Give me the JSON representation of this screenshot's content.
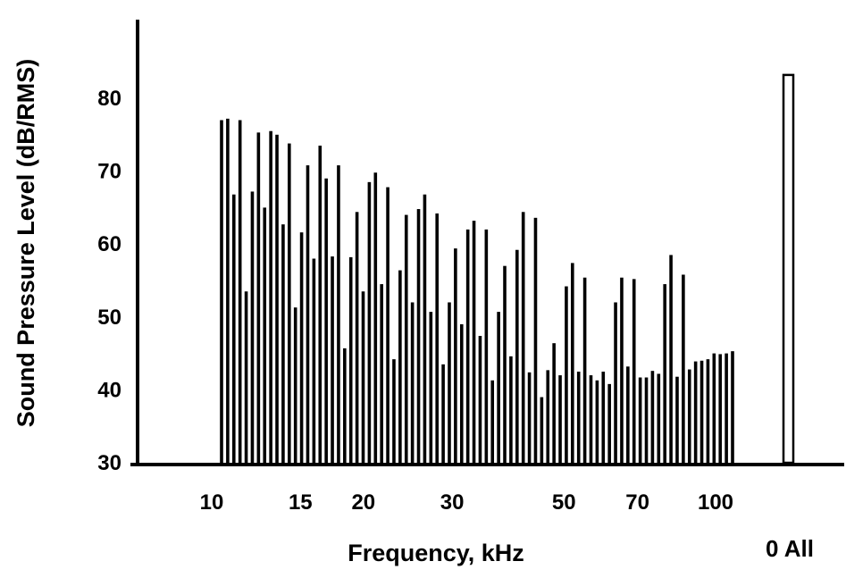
{
  "chart_data": {
    "type": "bar",
    "title": "",
    "xlabel": "Frequency, kHz",
    "ylabel": "Sound Pressure Level (dB/RMS)",
    "ylim": [
      30,
      90
    ],
    "y_ticks": [
      30,
      40,
      50,
      60,
      70,
      80
    ],
    "x_scale": "log",
    "x_ticks": [
      10,
      15,
      20,
      30,
      50,
      70,
      100
    ],
    "grid": false,
    "legend": "none",
    "bar_color": "#000000",
    "series": [
      {
        "values": [
          77,
          77.2,
          66.8,
          77,
          53.5,
          67.2,
          75.3,
          65,
          75.5,
          75,
          62.7,
          73.8,
          51.3,
          61.6,
          70.8,
          58,
          73.5,
          69,
          58.3,
          70.8,
          45.7,
          58.2,
          64.4,
          53.5,
          68.5,
          69.8,
          54.5,
          67.8,
          44.2,
          56.4,
          64,
          52,
          64.8,
          66.8,
          50.7,
          64.2,
          43.5,
          52,
          59.4,
          49,
          62,
          63.2,
          47.4,
          62,
          41.3,
          50.7,
          57,
          44.6,
          59.2,
          64.4,
          42.4,
          63.6,
          39,
          42.7,
          46.4,
          42,
          54.2,
          57.4,
          42.5,
          55.4,
          42,
          41.3,
          42.5,
          40.8,
          52,
          55.4,
          43.2,
          55.2,
          41.7,
          41.7,
          42.6,
          42.2,
          54.5,
          58.5,
          41.8,
          55.8,
          42.8,
          43.9,
          44,
          44.2,
          45,
          44.9,
          45,
          45.3
        ]
      }
    ],
    "overall": {
      "label": "0 All",
      "value": 83.2
    }
  }
}
